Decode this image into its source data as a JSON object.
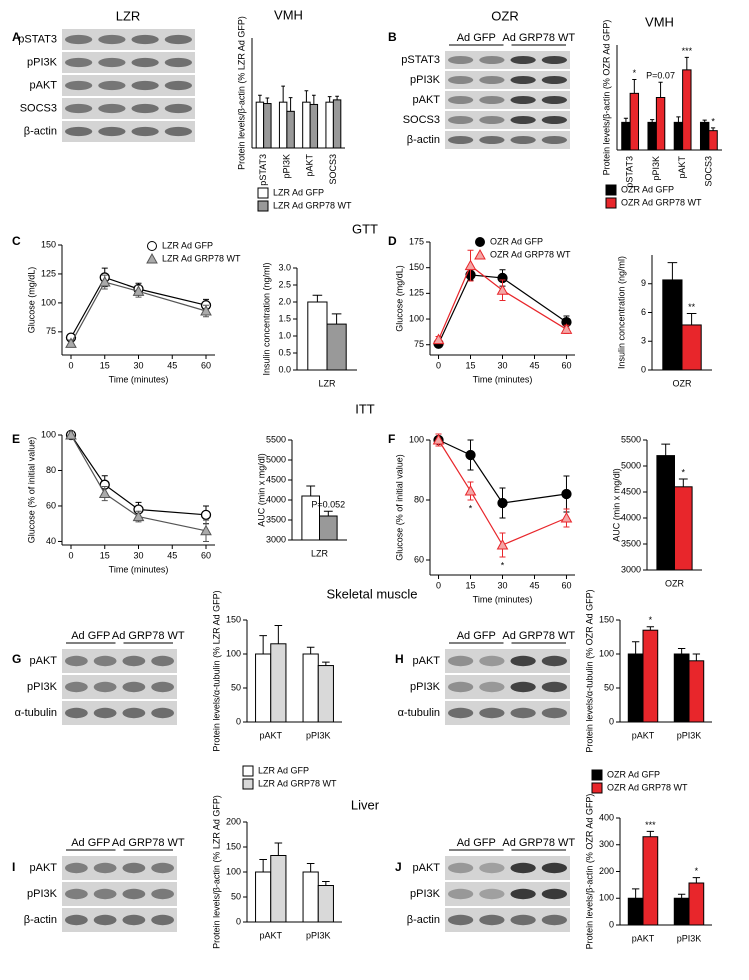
{
  "panels": [
    "A",
    "B",
    "C",
    "D",
    "E",
    "F",
    "G",
    "H",
    "I",
    "J"
  ],
  "headings": {
    "gtt": "GTT",
    "itt": "ITT",
    "skeletal": "Skeletal muscle",
    "liver": "Liver"
  },
  "blots": [
    {
      "title": "LZR",
      "rows": [
        "pSTAT3",
        "pPI3K",
        "pAKT",
        "SOCS3",
        "β-actin"
      ]
    },
    {
      "title": "OZR",
      "groups": [
        "Ad GFP",
        "Ad GRP78 WT"
      ],
      "rows": [
        "pSTAT3",
        "pPI3K",
        "pAKT",
        "SOCS3",
        "β-actin"
      ]
    },
    {
      "groups": [
        "Ad GFP",
        "Ad GRP78 WT"
      ],
      "rows": [
        "pAKT",
        "pPI3K",
        "α-tubulin"
      ]
    },
    {
      "groups": [
        "Ad GFP",
        "Ad GRP78 WT"
      ],
      "rows": [
        "pAKT",
        "pPI3K",
        "α-tubulin"
      ]
    },
    {
      "groups": [
        "Ad GFP",
        "Ad GRP78 WT"
      ],
      "rows": [
        "pAKT",
        "pPI3K",
        "β-actin"
      ]
    },
    {
      "groups": [
        "Ad GFP",
        "Ad GRP78 WT"
      ],
      "rows": [
        "pAKT",
        "pPI3K",
        "β-actin"
      ]
    }
  ],
  "chart_data": [
    {
      "type": "bar",
      "title": "VMH",
      "ylabel": "Protein levels/β-actin (% LZR Ad GFP)",
      "categories": [
        "pSTAT3",
        "pPI3K",
        "pAKT",
        "SOCS3"
      ],
      "ylim": [
        0,
        240
      ],
      "legend": "bottom",
      "series": [
        {
          "name": "LZR Ad GFP",
          "color": "#ffffff",
          "values": [
            100,
            100,
            100,
            100
          ],
          "errors": [
            15,
            35,
            25,
            12
          ]
        },
        {
          "name": "LZR Ad GRP78 WT",
          "color": "#999999",
          "values": [
            97,
            80,
            95,
            105
          ],
          "errors": [
            12,
            30,
            20,
            8
          ]
        }
      ]
    },
    {
      "type": "bar",
      "title": "VMH",
      "ylabel": "Protein levels/β-actin (% OZR Ad GFP)",
      "categories": [
        "pSTAT3",
        "pPI3K",
        "pAKT",
        "SOCS3"
      ],
      "ylim": [
        0,
        380
      ],
      "legend": "bottom",
      "series": [
        {
          "name": "OZR Ad GFP",
          "color": "#000000",
          "values": [
            100,
            100,
            100,
            100
          ],
          "errors": [
            15,
            10,
            20,
            8
          ]
        },
        {
          "name": "OZR Ad GRP78 WT",
          "color": "#e8262b",
          "values": [
            205,
            190,
            290,
            70
          ],
          "errors": [
            50,
            55,
            45,
            10
          ],
          "annotations": [
            "*",
            "P=0.07",
            "***",
            "*"
          ]
        }
      ]
    },
    {
      "type": "line",
      "ylabel": "Glucose (mg/dL)",
      "xlabel": "Time (minutes)",
      "x": [
        0,
        15,
        30,
        60
      ],
      "xlim": [
        -4,
        64
      ],
      "xticks": [
        0,
        15,
        30,
        45,
        60
      ],
      "ylim": [
        55,
        150
      ],
      "yticks": [
        75,
        100,
        125,
        150
      ],
      "legend": "top-right",
      "series": [
        {
          "name": "LZR Ad GFP",
          "color": "#000000",
          "fill": "#ffffff",
          "marker": "circle",
          "values": [
            70,
            122,
            112,
            98
          ],
          "errors": [
            3,
            8,
            5,
            5
          ]
        },
        {
          "name": "LZR Ad GRP78 WT",
          "color": "#555555",
          "fill": "#aaaaaa",
          "marker": "triangle",
          "values": [
            65,
            118,
            110,
            93
          ],
          "errors": [
            3,
            6,
            5,
            5
          ]
        }
      ]
    },
    {
      "type": "bar",
      "ylabel": "Insulin concentration (ng/ml)",
      "categories": [
        "LZR"
      ],
      "ylim": [
        0,
        3
      ],
      "yticks": [
        {
          "value": 0,
          "label": "0.0"
        },
        {
          "value": 0.5,
          "label": "0.5"
        },
        {
          "value": 1,
          "label": "1.0"
        },
        {
          "value": 1.5,
          "label": "1.5"
        },
        {
          "value": 2,
          "label": "2.0"
        },
        {
          "value": 2.5,
          "label": "2.5"
        },
        {
          "value": 3,
          "label": "3.0"
        }
      ],
      "series": [
        {
          "name": "LZR Ad GFP",
          "color": "#ffffff",
          "values": [
            2.0
          ],
          "errors": [
            0.2
          ]
        },
        {
          "name": "LZR Ad GRP78 WT",
          "color": "#999999",
          "values": [
            1.35
          ],
          "errors": [
            0.3
          ]
        }
      ]
    },
    {
      "type": "line",
      "ylabel": "Glucose (mg/dL)",
      "xlabel": "Time (minutes)",
      "x": [
        0,
        15,
        30,
        60
      ],
      "xlim": [
        -4,
        64
      ],
      "xticks": [
        0,
        15,
        30,
        45,
        60
      ],
      "ylim": [
        65,
        175
      ],
      "yticks": [
        75,
        100,
        125,
        150,
        175
      ],
      "legend": "top",
      "series": [
        {
          "name": "OZR Ad GFP",
          "color": "#000000",
          "fill": "#000000",
          "marker": "circle",
          "values": [
            76,
            143,
            140,
            97
          ],
          "errors": [
            3,
            5,
            8,
            6
          ]
        },
        {
          "name": "OZR Ad GRP78 WT",
          "color": "#e8262b",
          "fill": "#f4a6a6",
          "marker": "triangle",
          "values": [
            80,
            152,
            128,
            90
          ],
          "errors": [
            3,
            15,
            10,
            4
          ]
        }
      ]
    },
    {
      "type": "bar",
      "ylabel": "Insulin concentration (ng/ml)",
      "categories": [
        "OZR"
      ],
      "ylim": [
        0,
        12
      ],
      "yticks": [
        0,
        3,
        6,
        9
      ],
      "series": [
        {
          "name": "OZR Ad GFP",
          "color": "#000000",
          "values": [
            9.4
          ],
          "errors": [
            1.8
          ]
        },
        {
          "name": "OZR Ad GRP78 WT",
          "color": "#e8262b",
          "values": [
            4.7
          ],
          "errors": [
            1.2
          ],
          "annotations": [
            "**"
          ]
        }
      ]
    },
    {
      "type": "line",
      "ylabel": "Glucose (% of initial value)",
      "xlabel": "Time (minutes)",
      "x": [
        0,
        15,
        30,
        60
      ],
      "xlim": [
        -4,
        64
      ],
      "xticks": [
        0,
        15,
        30,
        45,
        60
      ],
      "ylim": [
        38,
        100
      ],
      "yticks": [
        40,
        60,
        80,
        100
      ],
      "series": [
        {
          "name": "LZR Ad GFP",
          "color": "#000000",
          "fill": "#ffffff",
          "marker": "circle",
          "values": [
            100,
            72,
            58,
            55
          ],
          "errors": [
            2,
            5,
            4,
            5
          ]
        },
        {
          "name": "LZR Ad GRP78 WT",
          "color": "#555555",
          "fill": "#aaaaaa",
          "marker": "triangle",
          "values": [
            100,
            67,
            54,
            46
          ],
          "errors": [
            2,
            4,
            3,
            6
          ]
        }
      ]
    },
    {
      "type": "bar",
      "ylabel": "AUC (min x mg/dl)",
      "categories": [
        "LZR"
      ],
      "ylim": [
        3000,
        5500
      ],
      "yticks": [
        3000,
        3500,
        4000,
        4500,
        5000,
        5500
      ],
      "series": [
        {
          "name": "LZR Ad GFP",
          "color": "#ffffff",
          "values": [
            4100
          ],
          "errors": [
            250
          ]
        },
        {
          "name": "LZR Ad GRP78 WT",
          "color": "#999999",
          "values": [
            3600
          ],
          "errors": [
            120
          ],
          "annotations": [
            "P=0.052"
          ]
        }
      ]
    },
    {
      "type": "line",
      "ylabel": "Glucose (% of initial value)",
      "xlabel": "Time (minutes)",
      "x": [
        0,
        15,
        30,
        60
      ],
      "xlim": [
        -4,
        64
      ],
      "xticks": [
        0,
        15,
        30,
        45,
        60
      ],
      "ylim": [
        55,
        100
      ],
      "yticks": [
        60,
        80,
        100
      ],
      "series": [
        {
          "name": "OZR Ad GFP",
          "color": "#000000",
          "fill": "#000000",
          "marker": "circle",
          "values": [
            100,
            95,
            79,
            82
          ],
          "errors": [
            2,
            5,
            5,
            6
          ]
        },
        {
          "name": "OZR Ad GRP78 WT",
          "color": "#e8262b",
          "fill": "#f4a6a6",
          "marker": "triangle",
          "values": [
            100,
            83,
            65,
            74
          ],
          "errors": [
            2,
            3,
            4,
            3
          ],
          "annotations": [
            null,
            "*",
            "*",
            null
          ]
        }
      ]
    },
    {
      "type": "bar",
      "ylabel": "AUC (min x mg/dl)",
      "categories": [
        "OZR"
      ],
      "ylim": [
        3000,
        5500
      ],
      "yticks": [
        3000,
        3500,
        4000,
        4500,
        5000,
        5500
      ],
      "series": [
        {
          "name": "OZR Ad GFP",
          "color": "#000000",
          "values": [
            5200
          ],
          "errors": [
            220
          ]
        },
        {
          "name": "OZR Ad GRP78 WT",
          "color": "#e8262b",
          "values": [
            4600
          ],
          "errors": [
            150
          ],
          "annotations": [
            "*"
          ]
        }
      ]
    },
    {
      "type": "bar",
      "ylabel": "Protein levels/α-tubulin (% LZR Ad GFP)",
      "categories": [
        "pAKT",
        "pPI3K"
      ],
      "ylim": [
        0,
        150
      ],
      "yticks": [
        0,
        50,
        100,
        150
      ],
      "legend": "bottom",
      "series": [
        {
          "name": "LZR Ad GFP",
          "color": "#ffffff",
          "values": [
            100,
            100
          ],
          "errors": [
            27,
            10
          ]
        },
        {
          "name": "LZR Ad GRP78 WT",
          "color": "#d9d9d9",
          "values": [
            115,
            83
          ],
          "errors": [
            27,
            5
          ]
        }
      ]
    },
    {
      "type": "bar",
      "ylabel": "Protein levels/α-tubulin (% OZR Ad GFP)",
      "categories": [
        "pAKT",
        "pPI3K"
      ],
      "ylim": [
        0,
        150
      ],
      "yticks": [
        0,
        50,
        100,
        150
      ],
      "legend": "bottom",
      "series": [
        {
          "name": "OZR Ad GFP",
          "color": "#000000",
          "values": [
            100,
            100
          ],
          "errors": [
            18,
            8
          ]
        },
        {
          "name": "OZR Ad GRP78 WT",
          "color": "#e8262b",
          "values": [
            135,
            90
          ],
          "errors": [
            5,
            10
          ],
          "annotations": [
            "*",
            null
          ]
        }
      ]
    },
    {
      "type": "bar",
      "ylabel": "Protein levels/β-actin (% LZR Ad GFP)",
      "categories": [
        "pAKT",
        "pPI3K"
      ],
      "ylim": [
        0,
        200
      ],
      "yticks": [
        0,
        50,
        100,
        150,
        200
      ],
      "series": [
        {
          "name": "LZR Ad GFP",
          "color": "#ffffff",
          "values": [
            100,
            100
          ],
          "errors": [
            25,
            17
          ]
        },
        {
          "name": "LZR Ad GRP78 WT",
          "color": "#d9d9d9",
          "values": [
            133,
            73
          ],
          "errors": [
            25,
            8
          ]
        }
      ]
    },
    {
      "type": "bar",
      "ylabel": "Protein levels/β-actin (% OZR Ad GFP)",
      "categories": [
        "pAKT",
        "pPI3K"
      ],
      "ylim": [
        0,
        400
      ],
      "yticks": [
        0,
        100,
        200,
        300,
        400
      ],
      "series": [
        {
          "name": "OZR Ad GFP",
          "color": "#000000",
          "values": [
            100,
            100
          ],
          "errors": [
            35,
            15
          ]
        },
        {
          "name": "OZR Ad GRP78 WT",
          "color": "#e8262b",
          "values": [
            330,
            157
          ],
          "errors": [
            20,
            20
          ],
          "annotations": [
            "***",
            "*"
          ]
        }
      ]
    }
  ]
}
